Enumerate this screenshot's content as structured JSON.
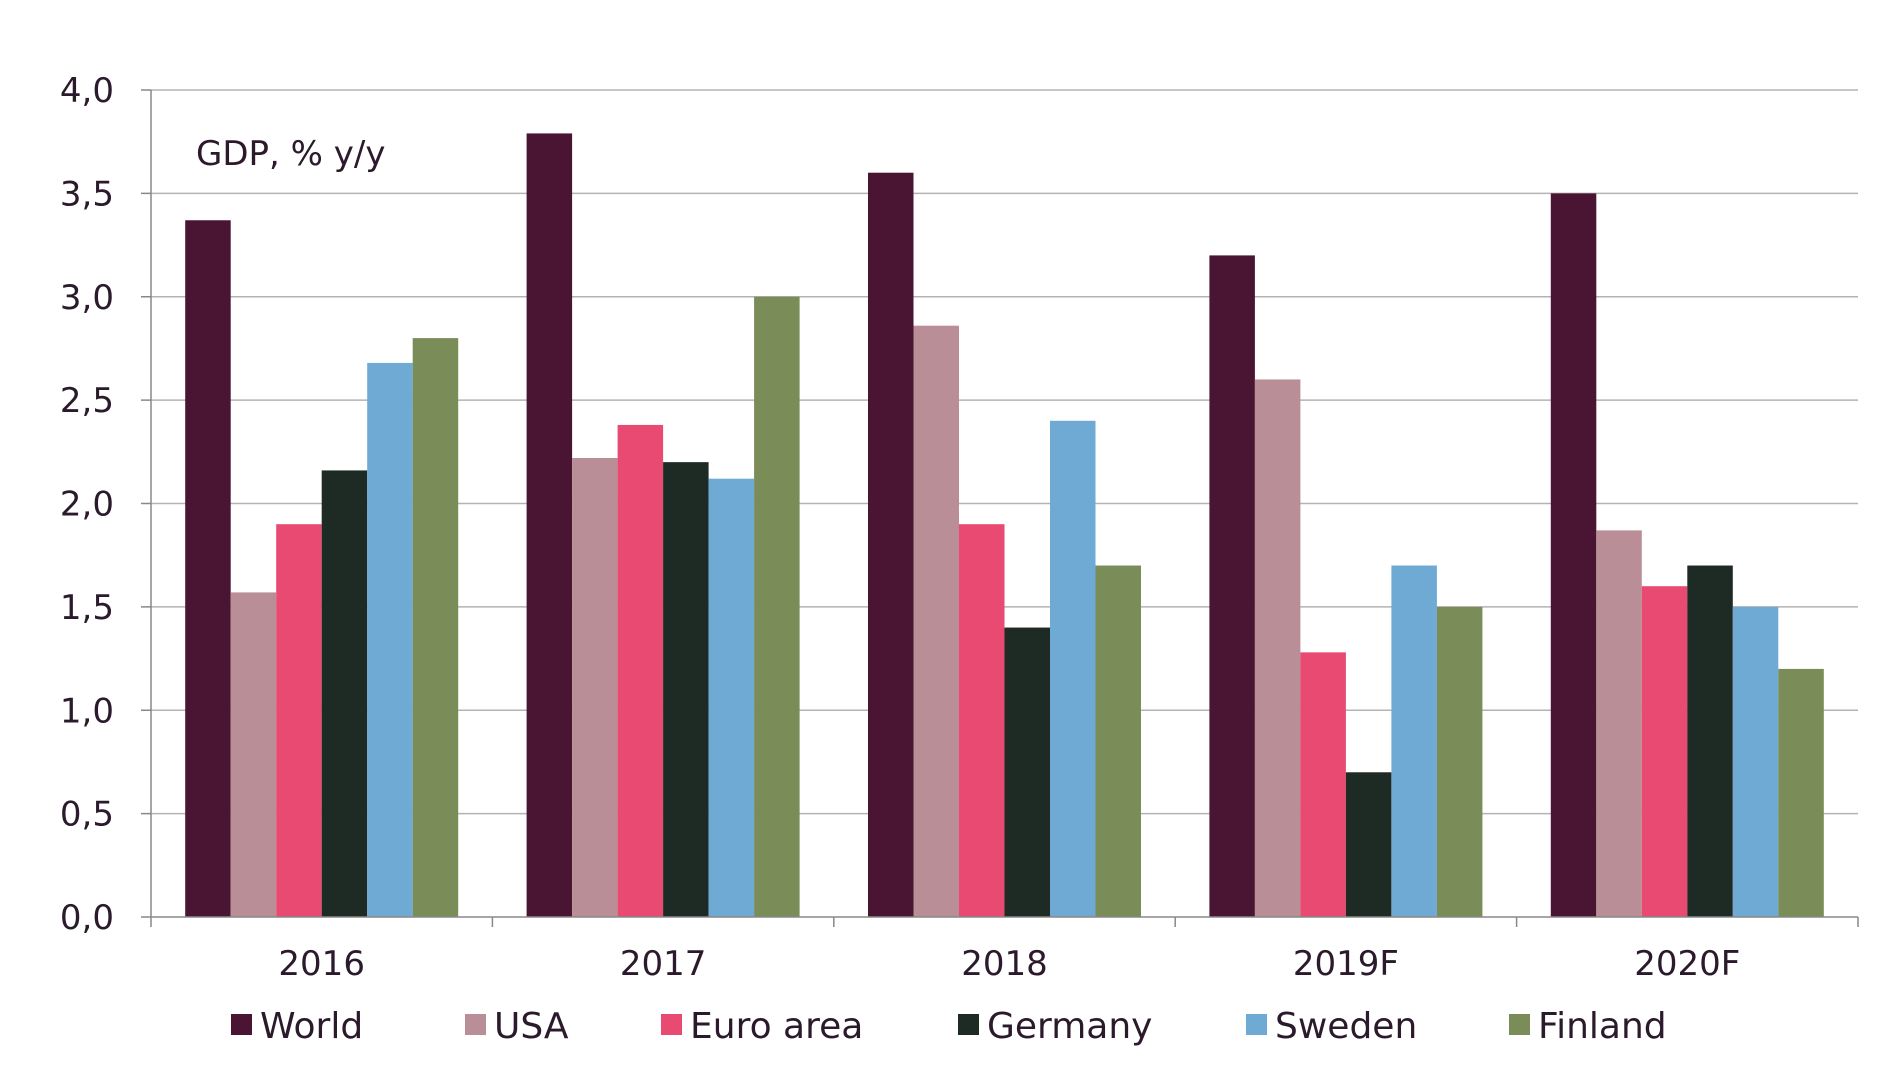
{
  "chart_data": {
    "type": "bar",
    "annotation": "GDP, % y/y",
    "categories": [
      "2016",
      "2017",
      "2018",
      "2019F",
      "2020F"
    ],
    "series": [
      {
        "name": "World",
        "color": "#4a1433",
        "values": [
          3.37,
          3.79,
          3.6,
          3.2,
          3.5
        ]
      },
      {
        "name": "USA",
        "color": "#b98e96",
        "values": [
          1.57,
          2.22,
          2.86,
          2.6,
          1.87
        ]
      },
      {
        "name": "Euro area",
        "color": "#e84a72",
        "values": [
          1.9,
          2.38,
          1.9,
          1.28,
          1.6
        ]
      },
      {
        "name": "Germany",
        "color": "#1d2b24",
        "values": [
          2.16,
          2.2,
          1.4,
          0.7,
          1.7
        ]
      },
      {
        "name": "Sweden",
        "color": "#6faad4",
        "values": [
          2.68,
          2.12,
          2.4,
          1.7,
          1.5
        ]
      },
      {
        "name": "Finland",
        "color": "#7a8c57",
        "values": [
          2.8,
          3.0,
          1.7,
          1.5,
          1.2
        ]
      }
    ],
    "ylim": [
      0,
      4
    ],
    "yticks": [
      0,
      0.5,
      1,
      1.5,
      2,
      2.5,
      3,
      3.5,
      4
    ],
    "ytick_labels": [
      "0,0",
      "0,5",
      "1,0",
      "1,5",
      "2,0",
      "2,5",
      "3,0",
      "3,5",
      "4,0"
    ],
    "grid": true,
    "legend_position": "bottom"
  }
}
